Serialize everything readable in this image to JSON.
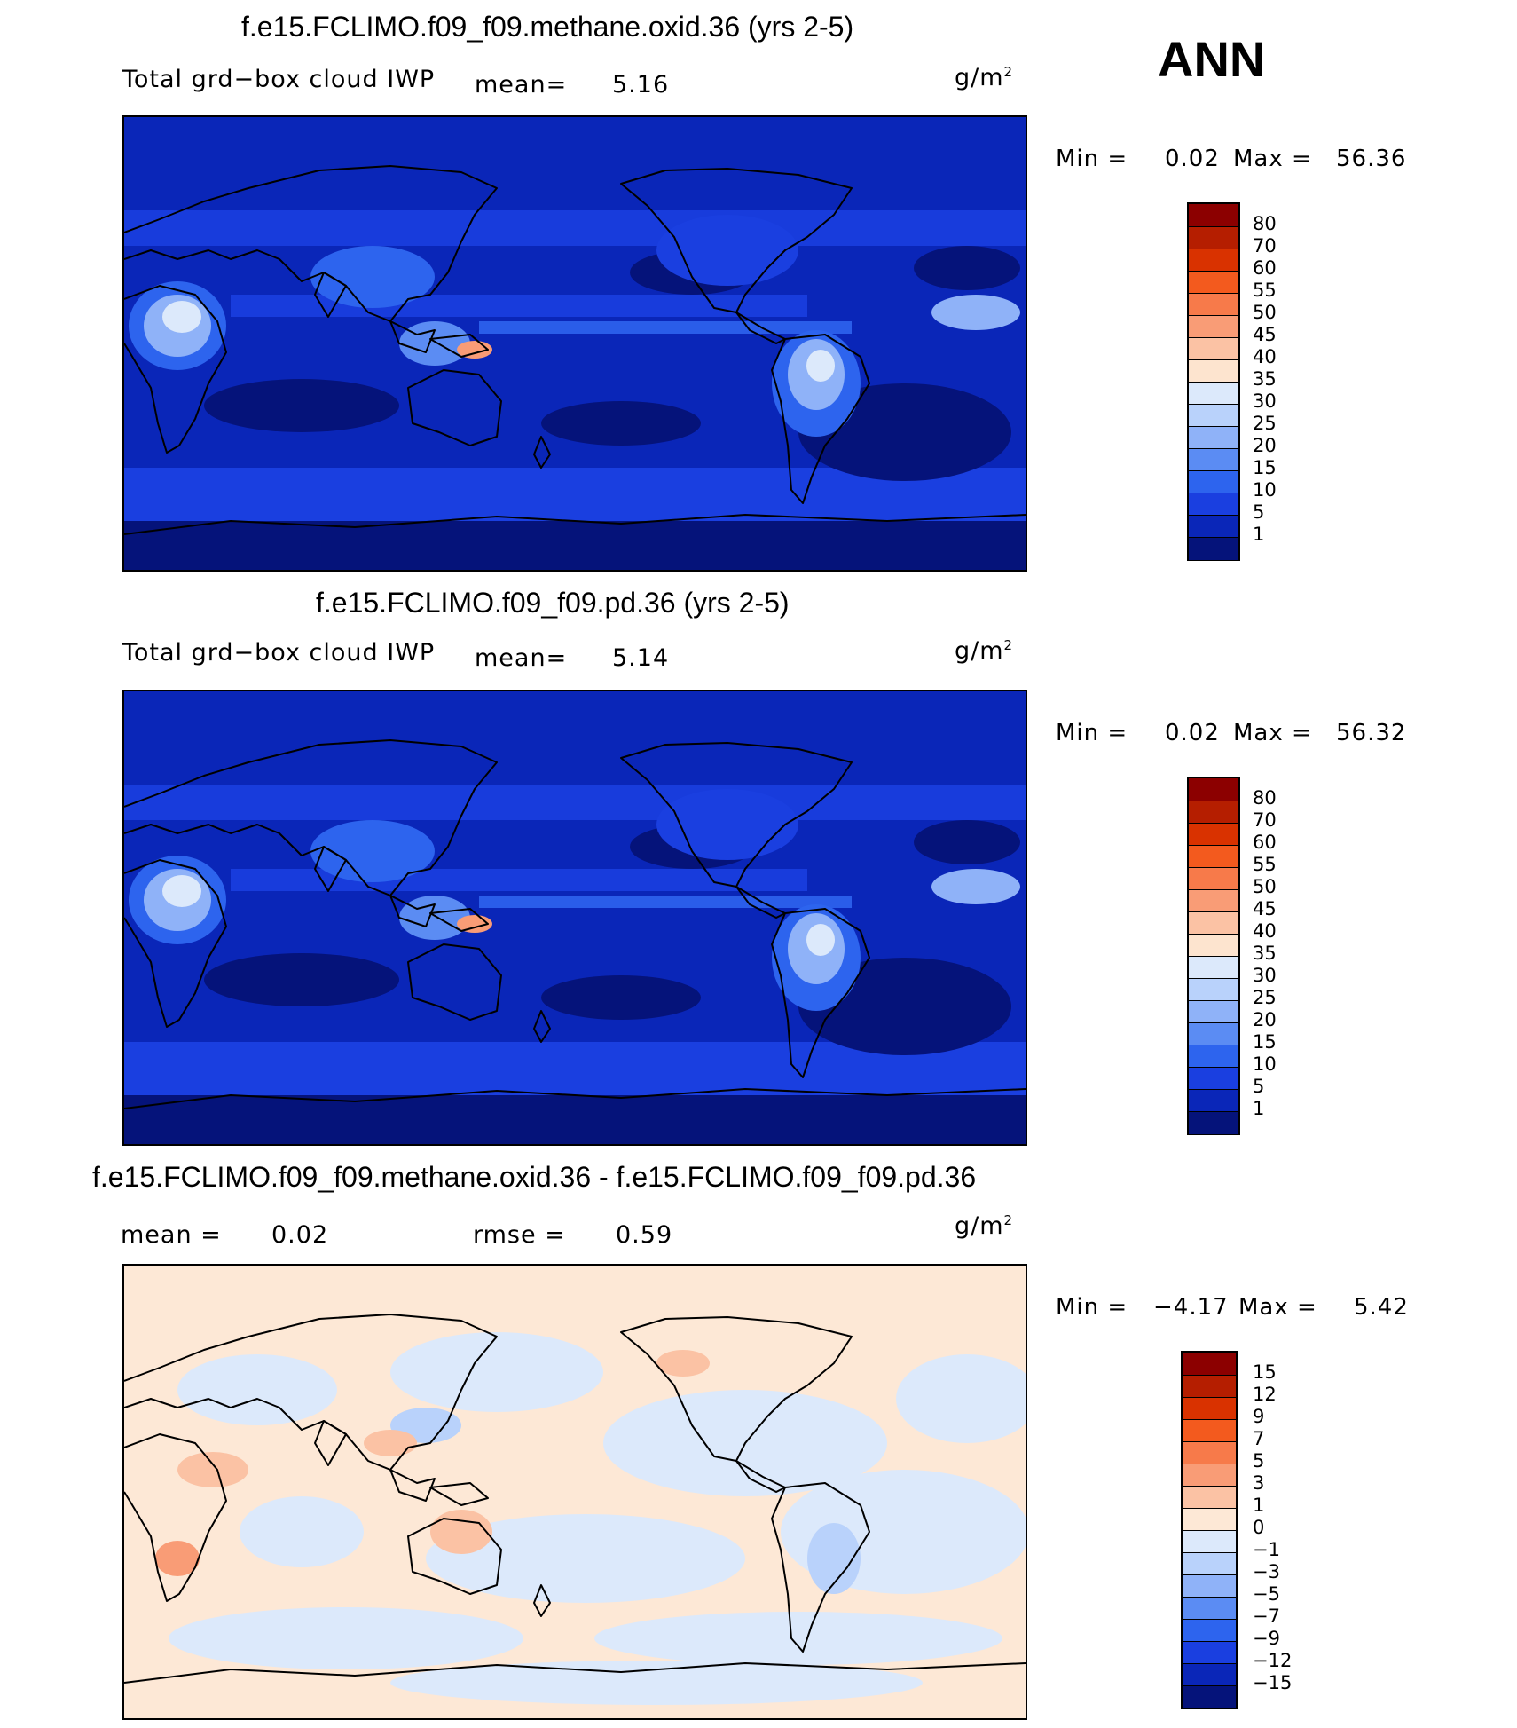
{
  "season": "ANN",
  "units_base": "g/m",
  "units_exp": "2",
  "panels": [
    {
      "id": "test",
      "title": "f.e15.FCLIMO.f09_f09.methane.oxid.36 (yrs 2-5)",
      "variable": "Total grd−box cloud IWP",
      "mean_label": "mean=",
      "mean_value": "5.16",
      "min_label": "Min =",
      "min_value": "0.02",
      "max_label": "Max =",
      "max_value": "56.36",
      "colorbar_labels": [
        "80",
        "70",
        "60",
        "55",
        "50",
        "45",
        "40",
        "35",
        "30",
        "25",
        "20",
        "15",
        "10",
        "5",
        "1"
      ],
      "colorbar_colors": [
        "#8c0000",
        "#b51e00",
        "#d93200",
        "#f35a1e",
        "#f77a4a",
        "#f99c76",
        "#fbc2a4",
        "#fde4cf",
        "#dce9fb",
        "#b9d2fb",
        "#8fb2f8",
        "#5b8cf3",
        "#2d64ee",
        "#1a3fe0",
        "#0a26b8",
        "#05137a"
      ],
      "map_colors": [
        "#05137a",
        "#0a26b8",
        "#1a3fe0",
        "#2d64ee",
        "#5b8cf3",
        "#8fb2f8",
        "#b9d2fb",
        "#dce9fb",
        "#fde4cf",
        "#f99c76"
      ]
    },
    {
      "id": "control",
      "title": "f.e15.FCLIMO.f09_f09.pd.36 (yrs 2-5)",
      "variable": "Total grd−box cloud IWP",
      "mean_label": "mean=",
      "mean_value": "5.14",
      "min_label": "Min =",
      "min_value": "0.02",
      "max_label": "Max =",
      "max_value": "56.32",
      "colorbar_labels": [
        "80",
        "70",
        "60",
        "55",
        "50",
        "45",
        "40",
        "35",
        "30",
        "25",
        "20",
        "15",
        "10",
        "5",
        "1"
      ],
      "colorbar_colors": [
        "#8c0000",
        "#b51e00",
        "#d93200",
        "#f35a1e",
        "#f77a4a",
        "#f99c76",
        "#fbc2a4",
        "#fde4cf",
        "#dce9fb",
        "#b9d2fb",
        "#8fb2f8",
        "#5b8cf3",
        "#2d64ee",
        "#1a3fe0",
        "#0a26b8",
        "#05137a"
      ]
    },
    {
      "id": "diff",
      "title": "f.e15.FCLIMO.f09_f09.methane.oxid.36 - f.e15.FCLIMO.f09_f09.pd.36",
      "mean_label": "mean =",
      "mean_value": "0.02",
      "rmse_label": "rmse =",
      "rmse_value": "0.59",
      "min_label": "Min =",
      "min_value": "−4.17",
      "max_label": "Max =",
      "max_value": "5.42",
      "colorbar_labels": [
        "15",
        "12",
        "9",
        "7",
        "5",
        "3",
        "1",
        "0",
        "−1",
        "−3",
        "−5",
        "−7",
        "−9",
        "−12",
        "−15"
      ],
      "colorbar_colors": [
        "#8c0000",
        "#b51e00",
        "#d93200",
        "#f35a1e",
        "#f77a4a",
        "#f99c76",
        "#fbc2a4",
        "#fde8d6",
        "#dce9fb",
        "#b9d2fb",
        "#8fb2f8",
        "#5b8cf3",
        "#2d64ee",
        "#1a3fe0",
        "#0a26b8",
        "#05137a"
      ]
    }
  ]
}
